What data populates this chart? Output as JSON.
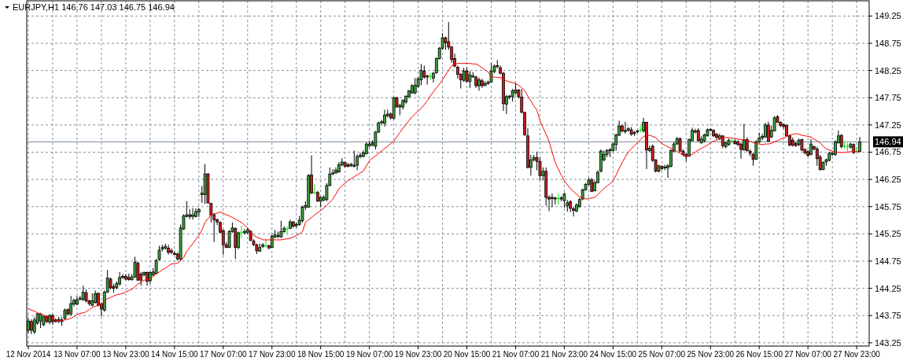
{
  "chart_data": {
    "type": "candlestick",
    "title": "EURJPY,H1 146.76 147.03 146.75 146.94",
    "categories": [
      "12 Nov 2014",
      null,
      null,
      null,
      null,
      null,
      null,
      null,
      null,
      null,
      null,
      null,
      null,
      null,
      null,
      null,
      "13 Nov 07:00",
      null,
      null,
      null,
      null,
      null,
      null,
      null,
      null,
      null,
      null,
      null,
      null,
      null,
      null,
      null,
      "13 Nov 23:00",
      null,
      null,
      null,
      null,
      null,
      null,
      null,
      null,
      null,
      null,
      null,
      null,
      null,
      null,
      null,
      "14 Nov 15:00",
      null,
      null,
      null,
      null,
      null,
      null,
      null,
      null,
      null,
      null,
      null,
      null,
      null,
      null,
      null,
      "17 Nov 07:00",
      null,
      null,
      null,
      null,
      null,
      null,
      null,
      null,
      null,
      null,
      null,
      null,
      null,
      null,
      null,
      "17 Nov 23:00",
      null,
      null,
      null,
      null,
      null,
      null,
      null,
      null,
      null,
      null,
      null,
      null,
      null,
      null,
      null,
      "18 Nov 15:00",
      null,
      null,
      null,
      null,
      null,
      null,
      null,
      null,
      null,
      null,
      null,
      null,
      null,
      null,
      null,
      "19 Nov 07:00",
      null,
      null,
      null,
      null,
      null,
      null,
      null,
      null,
      null,
      null,
      null,
      null,
      null,
      null,
      null,
      "19 Nov 23:00",
      null,
      null,
      null,
      null,
      null,
      null,
      null,
      null,
      null,
      null,
      null,
      null,
      null,
      null,
      null,
      "20 Nov 15:00",
      null,
      null,
      null,
      null,
      null,
      null,
      null,
      null,
      null,
      null,
      null,
      null,
      null,
      null,
      null,
      "21 Nov 07:00",
      null,
      null,
      null,
      null,
      null,
      null,
      null,
      null,
      null,
      null,
      null,
      null,
      null,
      null,
      null,
      "21 Nov 23:00",
      null,
      null,
      null,
      null,
      null,
      null,
      null,
      null,
      null,
      null,
      null,
      null,
      null,
      null,
      null,
      "24 Nov 15:00",
      null,
      null,
      null,
      null,
      null,
      null,
      null,
      null,
      null,
      null,
      null,
      null,
      null,
      null,
      null,
      "25 Nov 07:00",
      null,
      null,
      null,
      null,
      null,
      null,
      null,
      null,
      null,
      null,
      null,
      null,
      null,
      null,
      null,
      "25 Nov 23:00",
      null,
      null,
      null,
      null,
      null,
      null,
      null,
      null,
      null,
      null,
      null,
      null,
      null,
      null,
      null,
      "26 Nov 15:00",
      null,
      null,
      null,
      null,
      null,
      null,
      null,
      null,
      null,
      null,
      null,
      null,
      null,
      null,
      null,
      "27 Nov 07:00",
      null,
      null,
      null,
      null,
      null,
      null,
      null,
      null,
      null,
      null,
      null,
      null,
      null,
      null,
      null,
      "27 Nov 23:00",
      null
    ],
    "ohlc": [
      [
        143.48,
        143.7,
        143.43,
        143.65
      ],
      [
        143.64,
        143.68,
        143.41,
        143.48
      ],
      [
        143.45,
        143.72,
        143.41,
        143.67
      ],
      [
        143.61,
        143.8,
        143.58,
        143.78
      ],
      [
        143.65,
        143.8,
        143.52,
        143.78
      ],
      [
        143.58,
        143.75,
        143.56,
        143.73
      ],
      [
        143.73,
        143.75,
        143.61,
        143.64
      ],
      [
        143.63,
        143.78,
        143.59,
        143.75
      ],
      [
        143.75,
        143.78,
        143.58,
        143.64
      ],
      [
        143.67,
        143.7,
        143.62,
        143.64
      ],
      [
        143.65,
        143.73,
        143.61,
        143.68
      ],
      [
        143.67,
        143.72,
        143.56,
        143.64
      ],
      [
        143.7,
        143.88,
        143.67,
        143.85
      ],
      [
        143.86,
        143.88,
        143.75,
        143.78
      ],
      [
        143.78,
        144.11,
        143.75,
        143.97
      ],
      [
        143.96,
        144.06,
        143.92,
        144.03
      ],
      [
        143.96,
        144.11,
        143.94,
        144.04
      ],
      [
        144.05,
        144.11,
        144.03,
        144.07
      ],
      [
        144.04,
        144.3,
        144.02,
        144.18
      ],
      [
        144.17,
        144.23,
        143.99,
        144.02
      ],
      [
        144.02,
        144.04,
        143.93,
        143.97
      ],
      [
        143.94,
        144.16,
        143.92,
        144.02
      ],
      [
        143.99,
        144.21,
        143.97,
        144.15
      ],
      [
        144.16,
        144.17,
        143.92,
        143.94
      ],
      [
        143.96,
        143.99,
        143.73,
        143.87
      ],
      [
        143.85,
        144.21,
        143.82,
        144.18
      ],
      [
        144.18,
        144.59,
        144.17,
        144.44
      ],
      [
        144.42,
        144.45,
        144.23,
        144.26
      ],
      [
        144.28,
        144.33,
        144.17,
        144.25
      ],
      [
        144.27,
        144.38,
        144.23,
        144.34
      ],
      [
        144.33,
        144.55,
        144.3,
        144.45
      ],
      [
        144.47,
        144.51,
        144.42,
        144.45
      ],
      [
        144.47,
        144.51,
        144.4,
        144.42
      ],
      [
        144.45,
        144.52,
        144.39,
        144.41
      ],
      [
        144.41,
        144.51,
        144.39,
        144.46
      ],
      [
        144.46,
        144.83,
        144.44,
        144.73
      ],
      [
        144.71,
        144.74,
        144.39,
        144.4
      ],
      [
        144.51,
        144.55,
        144.3,
        144.4
      ],
      [
        144.5,
        144.56,
        144.47,
        144.54
      ],
      [
        144.54,
        144.56,
        144.3,
        144.38
      ],
      [
        144.39,
        144.56,
        144.33,
        144.54
      ],
      [
        144.5,
        144.62,
        144.47,
        144.55
      ],
      [
        144.52,
        144.79,
        144.51,
        144.76
      ],
      [
        144.78,
        145.03,
        144.76,
        144.95
      ],
      [
        144.97,
        145.05,
        144.93,
        145.0
      ],
      [
        144.99,
        145.07,
        144.96,
        145.02
      ],
      [
        144.99,
        145.05,
        144.87,
        144.91
      ],
      [
        144.94,
        144.98,
        144.88,
        144.91
      ],
      [
        144.89,
        144.93,
        144.86,
        144.87
      ],
      [
        144.88,
        144.91,
        144.76,
        144.79
      ],
      [
        144.79,
        145.42,
        144.76,
        145.36
      ],
      [
        145.34,
        145.61,
        145.32,
        145.58
      ],
      [
        145.57,
        145.85,
        145.55,
        145.6
      ],
      [
        145.6,
        145.7,
        145.52,
        145.57
      ],
      [
        145.57,
        145.72,
        145.51,
        145.6
      ],
      [
        145.57,
        145.72,
        145.55,
        145.66
      ],
      [
        145.65,
        145.72,
        145.56,
        145.7
      ],
      [
        145.97,
        146.13,
        145.82,
        146.0
      ],
      [
        145.97,
        146.53,
        145.8,
        146.35
      ],
      [
        146.35,
        146.37,
        145.8,
        145.82
      ],
      [
        145.81,
        145.82,
        145.46,
        145.6
      ],
      [
        145.6,
        145.63,
        145.1,
        145.51
      ],
      [
        145.51,
        145.53,
        145.41,
        145.47
      ],
      [
        145.46,
        145.48,
        145.26,
        145.28
      ],
      [
        145.31,
        145.33,
        144.86,
        145.05
      ],
      [
        145.05,
        145.1,
        144.99,
        145.0
      ],
      [
        145.0,
        145.32,
        144.99,
        145.29
      ],
      [
        145.29,
        145.46,
        145.27,
        145.36
      ],
      [
        145.35,
        145.37,
        144.79,
        145.0
      ],
      [
        145.0,
        145.29,
        144.97,
        145.27
      ],
      [
        145.28,
        145.4,
        145.17,
        145.28
      ],
      [
        145.27,
        145.34,
        145.24,
        145.29
      ],
      [
        145.28,
        145.36,
        145.24,
        145.32
      ],
      [
        145.29,
        145.32,
        145.12,
        145.13
      ],
      [
        145.12,
        145.15,
        145.03,
        145.05
      ],
      [
        145.05,
        145.07,
        144.88,
        144.94
      ],
      [
        144.93,
        145.07,
        144.92,
        145.0
      ],
      [
        145.02,
        145.08,
        144.99,
        145.05
      ],
      [
        145.03,
        145.15,
        145.0,
        145.03
      ],
      [
        145.03,
        145.05,
        144.97,
        144.99
      ],
      [
        145.0,
        145.24,
        144.99,
        145.21
      ],
      [
        145.19,
        145.32,
        145.17,
        145.23
      ],
      [
        145.21,
        145.29,
        145.17,
        145.22
      ],
      [
        145.19,
        145.49,
        145.18,
        145.29
      ],
      [
        145.29,
        145.39,
        145.27,
        145.35
      ],
      [
        145.34,
        145.39,
        145.24,
        145.34
      ],
      [
        145.35,
        145.51,
        145.34,
        145.47
      ],
      [
        145.47,
        145.48,
        145.36,
        145.39
      ],
      [
        145.4,
        145.46,
        145.36,
        145.42
      ],
      [
        145.42,
        145.58,
        145.4,
        145.5
      ],
      [
        145.49,
        145.77,
        145.46,
        145.74
      ],
      [
        145.74,
        145.85,
        145.69,
        145.77
      ],
      [
        145.74,
        146.35,
        145.73,
        146.32
      ],
      [
        146.33,
        146.69,
        145.98,
        146.0
      ],
      [
        146.01,
        146.16,
        145.97,
        146.01
      ],
      [
        146.01,
        146.04,
        145.84,
        145.85
      ],
      [
        145.85,
        145.94,
        145.74,
        145.92
      ],
      [
        145.87,
        145.96,
        145.85,
        145.92
      ],
      [
        145.88,
        146.18,
        145.85,
        146.14
      ],
      [
        146.14,
        146.47,
        146.12,
        146.35
      ],
      [
        146.35,
        146.44,
        146.33,
        146.37
      ],
      [
        146.37,
        146.47,
        146.35,
        146.42
      ],
      [
        146.39,
        146.57,
        146.37,
        146.52
      ],
      [
        146.52,
        146.64,
        146.49,
        146.57
      ],
      [
        146.56,
        146.58,
        146.47,
        146.49
      ],
      [
        146.52,
        146.55,
        146.47,
        146.49
      ],
      [
        146.5,
        146.55,
        146.48,
        146.53
      ],
      [
        146.49,
        146.78,
        146.47,
        146.51
      ],
      [
        146.51,
        146.71,
        146.42,
        146.67
      ],
      [
        146.67,
        146.74,
        146.64,
        146.69
      ],
      [
        146.67,
        146.78,
        146.66,
        146.74
      ],
      [
        146.72,
        146.93,
        146.71,
        146.9
      ],
      [
        146.87,
        146.96,
        146.84,
        146.9
      ],
      [
        146.88,
        146.97,
        146.86,
        146.92
      ],
      [
        146.86,
        147.14,
        146.8,
        147.12
      ],
      [
        147.12,
        147.31,
        147.1,
        147.29
      ],
      [
        147.29,
        147.34,
        147.26,
        147.31
      ],
      [
        147.28,
        147.53,
        147.22,
        147.43
      ],
      [
        147.42,
        147.53,
        147.39,
        147.45
      ],
      [
        147.45,
        147.48,
        147.35,
        147.38
      ],
      [
        147.37,
        147.77,
        147.35,
        147.75
      ],
      [
        147.75,
        147.77,
        147.57,
        147.58
      ],
      [
        147.58,
        147.64,
        147.43,
        147.61
      ],
      [
        147.58,
        147.72,
        147.53,
        147.7
      ],
      [
        147.67,
        147.79,
        147.64,
        147.78
      ],
      [
        147.77,
        147.89,
        147.74,
        147.88
      ],
      [
        147.84,
        148.0,
        147.82,
        147.97
      ],
      [
        147.84,
        148.11,
        147.81,
        147.98
      ],
      [
        147.96,
        148.13,
        147.93,
        148.1
      ],
      [
        148.08,
        148.37,
        147.98,
        148.25
      ],
      [
        148.24,
        148.34,
        148.1,
        148.13
      ],
      [
        148.15,
        148.17,
        147.99,
        148.13
      ],
      [
        148.14,
        148.2,
        148.08,
        148.14
      ],
      [
        148.11,
        148.22,
        148.03,
        148.2
      ],
      [
        148.21,
        148.49,
        148.19,
        148.47
      ],
      [
        148.47,
        148.68,
        148.45,
        148.66
      ],
      [
        148.66,
        148.94,
        148.63,
        148.85
      ],
      [
        148.85,
        148.87,
        148.63,
        148.76
      ],
      [
        148.78,
        149.14,
        148.63,
        148.68
      ],
      [
        148.68,
        148.7,
        148.39,
        148.45
      ],
      [
        148.47,
        148.56,
        148.31,
        148.33
      ],
      [
        148.31,
        148.34,
        148.1,
        148.18
      ],
      [
        148.18,
        148.2,
        147.92,
        148.08
      ],
      [
        148.07,
        148.3,
        148.04,
        148.24
      ],
      [
        148.24,
        148.31,
        148.03,
        148.05
      ],
      [
        148.05,
        148.24,
        147.93,
        148.17
      ],
      [
        148.13,
        148.22,
        148.12,
        148.15
      ],
      [
        148.13,
        148.15,
        147.93,
        147.97
      ],
      [
        147.97,
        148.12,
        147.88,
        148.08
      ],
      [
        148.06,
        148.1,
        147.93,
        147.97
      ],
      [
        147.98,
        148.05,
        147.96,
        148.01
      ],
      [
        148.01,
        148.06,
        147.99,
        148.04
      ],
      [
        148.04,
        148.39,
        148.03,
        148.24
      ],
      [
        148.23,
        148.36,
        148.2,
        148.33
      ],
      [
        148.32,
        148.44,
        148.29,
        148.34
      ],
      [
        148.3,
        148.34,
        148.18,
        148.2
      ],
      [
        148.2,
        148.22,
        147.51,
        147.64
      ],
      [
        147.63,
        147.8,
        147.45,
        147.77
      ],
      [
        147.77,
        147.8,
        147.72,
        147.78
      ],
      [
        147.77,
        147.91,
        147.68,
        147.88
      ],
      [
        147.84,
        148.01,
        147.81,
        147.89
      ],
      [
        147.89,
        147.91,
        147.74,
        147.77
      ],
      [
        147.76,
        147.91,
        147.47,
        147.48
      ],
      [
        147.48,
        147.49,
        147.05,
        147.07
      ],
      [
        147.05,
        147.19,
        146.45,
        146.47
      ],
      [
        146.47,
        146.7,
        146.32,
        146.61
      ],
      [
        146.61,
        146.7,
        146.58,
        146.65
      ],
      [
        146.65,
        146.76,
        146.42,
        146.58
      ],
      [
        146.58,
        146.66,
        146.23,
        146.32
      ],
      [
        146.32,
        146.47,
        146.23,
        146.4
      ],
      [
        146.4,
        146.47,
        145.77,
        145.92
      ],
      [
        145.92,
        145.96,
        145.67,
        145.89
      ],
      [
        145.92,
        145.99,
        145.74,
        145.9
      ],
      [
        145.89,
        145.93,
        145.79,
        145.91
      ],
      [
        145.9,
        145.99,
        145.79,
        145.9
      ],
      [
        145.89,
        145.94,
        145.85,
        145.91
      ],
      [
        145.86,
        146.01,
        145.73,
        145.98
      ],
      [
        145.77,
        145.87,
        145.66,
        145.82
      ],
      [
        145.84,
        145.87,
        145.65,
        145.72
      ],
      [
        145.71,
        145.75,
        145.57,
        145.68
      ],
      [
        145.67,
        145.81,
        145.65,
        145.78
      ],
      [
        145.75,
        145.91,
        145.73,
        145.88
      ],
      [
        145.89,
        146.08,
        145.87,
        146.06
      ],
      [
        146.06,
        146.18,
        146.04,
        146.16
      ],
      [
        146.16,
        146.28,
        146.14,
        146.24
      ],
      [
        146.24,
        146.28,
        146.02,
        146.03
      ],
      [
        146.04,
        146.23,
        146.03,
        146.19
      ],
      [
        146.19,
        146.42,
        146.18,
        146.38
      ],
      [
        146.4,
        146.8,
        146.38,
        146.77
      ],
      [
        146.61,
        146.78,
        146.58,
        146.71
      ],
      [
        146.71,
        146.81,
        146.66,
        146.78
      ],
      [
        146.78,
        146.82,
        146.66,
        146.8
      ],
      [
        146.78,
        146.93,
        146.76,
        146.9
      ],
      [
        146.89,
        147.09,
        146.78,
        147.07
      ],
      [
        147.06,
        147.33,
        147.05,
        147.23
      ],
      [
        147.23,
        147.26,
        147.11,
        147.14
      ],
      [
        147.13,
        147.31,
        147.09,
        147.15
      ],
      [
        147.15,
        147.21,
        147.13,
        147.18
      ],
      [
        147.16,
        147.21,
        147.05,
        147.08
      ],
      [
        147.09,
        147.14,
        147.05,
        147.11
      ],
      [
        147.13,
        147.16,
        147.1,
        147.14
      ],
      [
        147.16,
        147.23,
        147.11,
        147.16
      ],
      [
        147.14,
        147.38,
        147.11,
        147.3
      ],
      [
        147.3,
        147.31,
        146.44,
        146.79
      ],
      [
        146.78,
        146.87,
        146.75,
        146.82
      ],
      [
        146.86,
        146.89,
        146.57,
        146.6
      ],
      [
        146.61,
        146.62,
        146.38,
        146.4
      ],
      [
        146.4,
        146.52,
        146.38,
        146.5
      ],
      [
        146.49,
        146.51,
        146.42,
        146.45
      ],
      [
        146.46,
        146.52,
        146.42,
        146.48
      ],
      [
        146.46,
        146.53,
        146.28,
        146.5
      ],
      [
        146.49,
        146.8,
        146.47,
        146.78
      ],
      [
        146.77,
        146.94,
        146.75,
        146.9
      ],
      [
        146.9,
        147.03,
        146.89,
        147.0
      ],
      [
        147.0,
        147.02,
        146.76,
        146.77
      ],
      [
        146.77,
        146.8,
        146.67,
        146.71
      ],
      [
        146.71,
        146.73,
        146.58,
        146.67
      ],
      [
        146.68,
        147.0,
        146.67,
        146.98
      ],
      [
        146.96,
        147.2,
        146.95,
        147.15
      ],
      [
        147.12,
        147.18,
        147.09,
        147.14
      ],
      [
        147.15,
        147.19,
        146.95,
        146.96
      ],
      [
        146.92,
        147.04,
        146.91,
        146.99
      ],
      [
        146.96,
        147.09,
        146.93,
        147.07
      ],
      [
        147.05,
        147.19,
        147.04,
        147.16
      ],
      [
        147.15,
        147.19,
        147.13,
        147.17
      ],
      [
        147.15,
        147.17,
        147.03,
        147.05
      ],
      [
        147.08,
        147.1,
        146.99,
        147.02
      ],
      [
        147.0,
        147.09,
        146.97,
        147.05
      ],
      [
        147.05,
        147.06,
        146.82,
        146.87
      ],
      [
        146.85,
        146.95,
        146.82,
        146.92
      ],
      [
        146.89,
        147.0,
        146.87,
        146.97
      ],
      [
        146.95,
        147.0,
        146.91,
        146.95
      ],
      [
        146.95,
        146.98,
        146.89,
        146.91
      ],
      [
        146.94,
        146.97,
        146.86,
        146.89
      ],
      [
        146.9,
        146.92,
        146.63,
        146.8
      ],
      [
        146.79,
        147.27,
        146.78,
        146.97
      ],
      [
        146.98,
        147.02,
        146.76,
        146.78
      ],
      [
        146.77,
        146.8,
        146.68,
        146.73
      ],
      [
        146.71,
        146.74,
        146.5,
        146.62
      ],
      [
        146.62,
        146.97,
        146.61,
        146.94
      ],
      [
        146.94,
        147.11,
        146.92,
        147.01
      ],
      [
        147.01,
        147.09,
        146.97,
        147.04
      ],
      [
        147.03,
        147.29,
        147.01,
        147.25
      ],
      [
        147.25,
        147.31,
        146.94,
        146.95
      ],
      [
        147.03,
        147.24,
        147.01,
        147.15
      ],
      [
        147.14,
        147.41,
        147.13,
        147.38
      ],
      [
        147.4,
        147.43,
        147.29,
        147.3
      ],
      [
        147.3,
        147.32,
        147.21,
        147.24
      ],
      [
        147.26,
        147.28,
        147.18,
        147.22
      ],
      [
        147.24,
        147.26,
        147.03,
        147.05
      ],
      [
        147.05,
        147.07,
        146.86,
        146.88
      ],
      [
        146.97,
        147.02,
        146.85,
        146.88
      ],
      [
        146.91,
        146.94,
        146.85,
        146.87
      ],
      [
        146.89,
        147.0,
        146.86,
        146.97
      ],
      [
        146.98,
        147.0,
        146.77,
        146.79
      ],
      [
        146.8,
        146.82,
        146.71,
        146.74
      ],
      [
        146.76,
        146.79,
        146.67,
        146.69
      ],
      [
        146.71,
        146.99,
        146.69,
        146.9
      ],
      [
        146.85,
        146.87,
        146.78,
        146.81
      ],
      [
        146.81,
        146.85,
        146.5,
        146.63
      ],
      [
        146.66,
        146.7,
        146.41,
        146.43
      ],
      [
        146.43,
        146.58,
        146.42,
        146.56
      ],
      [
        146.57,
        146.63,
        146.5,
        146.61
      ],
      [
        146.6,
        146.76,
        146.58,
        146.73
      ],
      [
        146.71,
        146.76,
        146.68,
        146.73
      ],
      [
        146.71,
        146.97,
        146.68,
        146.94
      ],
      [
        146.92,
        147.15,
        146.91,
        147.05
      ],
      [
        147.06,
        147.08,
        146.82,
        146.85
      ],
      [
        146.86,
        146.94,
        146.81,
        146.86
      ],
      [
        146.86,
        146.92,
        146.76,
        146.86
      ],
      [
        146.84,
        146.92,
        146.82,
        146.9
      ],
      [
        146.89,
        146.91,
        146.72,
        146.74
      ],
      [
        146.77,
        146.85,
        146.75,
        146.77
      ],
      [
        146.76,
        147.03,
        146.75,
        146.94
      ]
    ],
    "colors": [
      "#3c9f3c",
      "#c81e1e",
      "#3c9f3c",
      "#3c9f3c",
      "#3c9f3c",
      "#3c9f3c",
      "#c81e1e",
      "#3c9f3c",
      "#c81e1e",
      "#c81e1e",
      "#3c9f3c",
      "#c81e1e",
      "#3c9f3c",
      "#c81e1e",
      "#3c9f3c",
      "#3c9f3c",
      "#3c9f3c",
      "#3c9f3c",
      "#3c9f3c",
      "#c81e1e",
      "#c81e1e",
      "#3c9f3c",
      "#3c9f3c",
      "#c81e1e",
      "#c81e1e",
      "#3c9f3c",
      "#3c9f3c",
      "#c81e1e",
      "#c81e1e",
      "#3c9f3c",
      "#3c9f3c",
      "#c81e1e",
      "#c81e1e",
      "#c81e1e",
      "#3c9f3c",
      "#3c9f3c",
      "#c81e1e",
      "#c81e1e",
      "#3c9f3c",
      "#c81e1e",
      "#3c9f3c",
      "#3c9f3c",
      "#3c9f3c",
      "#3c9f3c",
      "#3c9f3c",
      "#3c9f3c",
      "#c81e1e",
      "#c81e1e",
      "#c81e1e",
      "#c81e1e",
      "#3c9f3c",
      "#3c9f3c",
      "#3c9f3c",
      "#c81e1e",
      "#3c9f3c",
      "#3c9f3c",
      "#3c9f3c",
      "#3c9f3c",
      "#3c9f3c",
      "#c81e1e",
      "#c81e1e",
      "#c81e1e",
      "#c81e1e",
      "#c81e1e",
      "#c81e1e",
      "#c81e1e",
      "#3c9f3c",
      "#3c9f3c",
      "#c81e1e",
      "#3c9f3c",
      "#00ee00",
      "#3c9f3c",
      "#3c9f3c",
      "#c81e1e",
      "#c81e1e",
      "#c81e1e",
      "#3c9f3c",
      "#3c9f3c",
      "#00ee00",
      "#c81e1e",
      "#3c9f3c",
      "#3c9f3c",
      "#3c9f3c",
      "#3c9f3c",
      "#3c9f3c",
      "#00ee00",
      "#3c9f3c",
      "#c81e1e",
      "#3c9f3c",
      "#3c9f3c",
      "#3c9f3c",
      "#3c9f3c",
      "#3c9f3c",
      "#c81e1e",
      "#00ee00",
      "#c81e1e",
      "#3c9f3c",
      "#3c9f3c",
      "#3c9f3c",
      "#3c9f3c",
      "#3c9f3c",
      "#3c9f3c",
      "#3c9f3c",
      "#3c9f3c",
      "#c81e1e",
      "#c81e1e",
      "#3c9f3c",
      "#3c9f3c",
      "#3c9f3c",
      "#3c9f3c",
      "#3c9f3c",
      "#3c9f3c",
      "#3c9f3c",
      "#3c9f3c",
      "#3c9f3c",
      "#3c9f3c",
      "#3c9f3c",
      "#3c9f3c",
      "#3c9f3c",
      "#c81e1e",
      "#3c9f3c",
      "#c81e1e",
      "#3c9f3c",
      "#3c9f3c",
      "#3c9f3c",
      "#3c9f3c",
      "#3c9f3c",
      "#3c9f3c",
      "#3c9f3c",
      "#3c9f3c",
      "#c81e1e",
      "#c81e1e",
      "#00ee00",
      "#3c9f3c",
      "#3c9f3c",
      "#3c9f3c",
      "#3c9f3c",
      "#c81e1e",
      "#c81e1e",
      "#c81e1e",
      "#c81e1e",
      "#c81e1e",
      "#c81e1e",
      "#3c9f3c",
      "#c81e1e",
      "#3c9f3c",
      "#3c9f3c",
      "#c81e1e",
      "#3c9f3c",
      "#c81e1e",
      "#3c9f3c",
      "#3c9f3c",
      "#3c9f3c",
      "#3c9f3c",
      "#3c9f3c",
      "#c81e1e",
      "#c81e1e",
      "#3c9f3c",
      "#3c9f3c",
      "#3c9f3c",
      "#3c9f3c",
      "#c81e1e",
      "#c81e1e",
      "#c81e1e",
      "#c81e1e",
      "#3c9f3c",
      "#3c9f3c",
      "#c81e1e",
      "#c81e1e",
      "#3c9f3c",
      "#c81e1e",
      "#c81e1e",
      "#c81e1e",
      "#3c9f3c",
      "#00ee00",
      "#3c9f3c",
      "#3c9f3c",
      "#3c9f3c",
      "#c81e1e",
      "#c81e1e",
      "#3c9f3c",
      "#3c9f3c",
      "#3c9f3c",
      "#3c9f3c",
      "#3c9f3c",
      "#c81e1e",
      "#3c9f3c",
      "#3c9f3c",
      "#3c9f3c",
      "#3c9f3c",
      "#3c9f3c",
      "#3c9f3c",
      "#3c9f3c",
      "#3c9f3c",
      "#3c9f3c",
      "#c81e1e",
      "#3c9f3c",
      "#3c9f3c",
      "#c81e1e",
      "#3c9f3c",
      "#3c9f3c",
      "#00ee00",
      "#3c9f3c",
      "#c81e1e",
      "#3c9f3c",
      "#c81e1e",
      "#c81e1e",
      "#3c9f3c",
      "#c81e1e",
      "#3c9f3c",
      "#3c9f3c",
      "#3c9f3c",
      "#3c9f3c",
      "#3c9f3c",
      "#c81e1e",
      "#c81e1e",
      "#c81e1e",
      "#3c9f3c",
      "#3c9f3c",
      "#3c9f3c",
      "#c81e1e",
      "#3c9f3c",
      "#3c9f3c",
      "#3c9f3c",
      "#3c9f3c",
      "#c81e1e",
      "#c81e1e",
      "#3c9f3c",
      "#c81e1e",
      "#3c9f3c",
      "#3c9f3c",
      "#00ee00",
      "#c81e1e",
      "#c81e1e",
      "#c81e1e",
      "#3c9f3c",
      "#c81e1e",
      "#c81e1e",
      "#c81e1e",
      "#3c9f3c",
      "#3c9f3c",
      "#3c9f3c",
      "#3c9f3c",
      "#c81e1e",
      "#3c9f3c",
      "#3c9f3c",
      "#c81e1e",
      "#c81e1e",
      "#c81e1e",
      "#c81e1e",
      "#c81e1e",
      "#c81e1e",
      "#c81e1e",
      "#3c9f3c",
      "#c81e1e",
      "#c81e1e",
      "#c81e1e",
      "#3c9f3c",
      "#c81e1e",
      "#c81e1e",
      "#c81e1e",
      "#3c9f3c",
      "#3c9f3c",
      "#3c9f3c",
      "#3c9f3c",
      "#3c9f3c",
      "#3c9f3c",
      "#c81e1e",
      "#00ee00",
      "#00ee00",
      "#3c9f3c",
      "#c81e1e",
      "#00ee00",
      "#3c9f3c"
    ],
    "series": [
      {
        "type": "line",
        "color": "#ff0000",
        "values": [
          143.88,
          143.85,
          143.83,
          143.8,
          143.78,
          143.76,
          143.74,
          143.72,
          143.7,
          143.65,
          143.66,
          143.66,
          143.67,
          143.68,
          143.7,
          143.73,
          143.77,
          143.79,
          143.8,
          143.82,
          143.86,
          143.9,
          143.92,
          143.94,
          143.96,
          144.01,
          144.06,
          144.08,
          144.11,
          144.13,
          144.14,
          144.16,
          144.18,
          144.21,
          144.23,
          144.28,
          144.33,
          144.36,
          144.4,
          144.41,
          144.42,
          144.47,
          144.52,
          144.55,
          144.59,
          144.62,
          144.66,
          144.7,
          144.7,
          144.71,
          144.76,
          144.81,
          144.93,
          145.0,
          145.07,
          145.15,
          145.22,
          145.32,
          145.46,
          145.53,
          145.6,
          145.62,
          145.63,
          145.65,
          145.63,
          145.6,
          145.58,
          145.55,
          145.52,
          145.49,
          145.46,
          145.41,
          145.36,
          145.29,
          145.22,
          145.19,
          145.17,
          145.14,
          145.14,
          145.14,
          145.14,
          145.14,
          145.14,
          145.14,
          145.15,
          145.16,
          145.17,
          145.19,
          145.22,
          145.25,
          145.29,
          145.46,
          145.51,
          145.55,
          145.6,
          145.64,
          145.68,
          145.72,
          145.78,
          145.83,
          145.89,
          145.98,
          146.08,
          146.13,
          146.18,
          146.23,
          146.26,
          146.3,
          146.33,
          146.37,
          146.4,
          146.5,
          146.59,
          146.64,
          146.68,
          146.73,
          146.77,
          146.82,
          146.86,
          146.91,
          146.95,
          147.03,
          147.11,
          147.19,
          147.26,
          147.33,
          147.4,
          147.45,
          147.51,
          147.56,
          147.62,
          147.7,
          147.78,
          147.86,
          147.93,
          148.0,
          148.08,
          148.17,
          148.25,
          148.34,
          148.36,
          148.38,
          148.38,
          148.38,
          148.38,
          148.38,
          148.37,
          148.37,
          148.34,
          148.3,
          148.26,
          148.22,
          148.13,
          148.13,
          148.12,
          148.12,
          148.09,
          148.06,
          148.04,
          148.03,
          148.01,
          147.98,
          147.93,
          147.88,
          147.78,
          147.69,
          147.6,
          147.52,
          147.33,
          147.2,
          147.08,
          146.95,
          146.75,
          146.56,
          146.44,
          146.33,
          146.22,
          146.15,
          146.08,
          146.03,
          145.98,
          145.93,
          145.91,
          145.89,
          145.9,
          145.91,
          145.92,
          145.97,
          146.03,
          146.08,
          146.13,
          146.17,
          146.22,
          146.33,
          146.45,
          146.56,
          146.66,
          146.75,
          146.81,
          146.87,
          146.92,
          146.98,
          147.04,
          147.05,
          147.06,
          147.04,
          147.02,
          146.96,
          146.91,
          146.88,
          146.85,
          146.82,
          146.79,
          146.76,
          146.73,
          146.7,
          146.68,
          146.69,
          146.71,
          146.75,
          146.79,
          146.82,
          146.85,
          146.88,
          146.92,
          146.95,
          146.97,
          147.0,
          147.02,
          147.02,
          147.02,
          147.01,
          147.0,
          146.99,
          146.98,
          146.98,
          146.97,
          146.95,
          146.93,
          146.91,
          146.9,
          146.89,
          146.9,
          146.9,
          146.91,
          146.94,
          146.96,
          146.99,
          147.01,
          147.04,
          147.06,
          147.08,
          147.09,
          147.08,
          147.06,
          147.05,
          147.04,
          147.03,
          146.99,
          146.96,
          146.92,
          146.86,
          146.81,
          146.79,
          146.77,
          146.75,
          146.75,
          146.74,
          146.75,
          146.75,
          146.76,
          146.76,
          146.76,
          146.75
        ]
      }
    ],
    "ylim": [
      143.19,
      149.53
    ],
    "yticks": [
      143.25,
      143.75,
      144.25,
      144.75,
      145.25,
      145.75,
      146.25,
      146.75,
      147.25,
      147.75,
      148.25,
      148.75,
      149.25
    ],
    "grid": true,
    "ref_lines": [
      {
        "axis": "y",
        "value": 146.94,
        "label": "146.94",
        "color": "#778899"
      }
    ]
  }
}
